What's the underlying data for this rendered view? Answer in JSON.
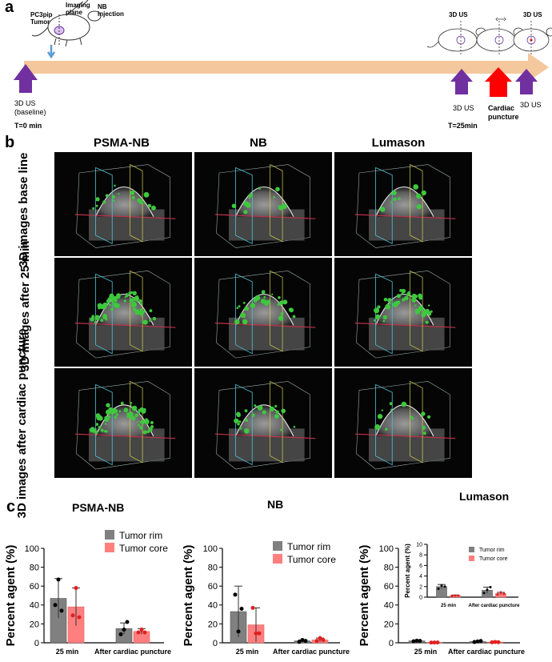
{
  "panel_a": {
    "letter": "a",
    "mouse_labels": {
      "tumor": "PC3pip Tumor",
      "imaging_plane": "Imaging plane",
      "nb_injection": "NB injection"
    },
    "timeline_labels": {
      "baseline": "3D US (baseline)",
      "t0": "T=0 min",
      "us25": "3D US",
      "t25": "T=25min",
      "cardiac": "Cardiac puncture",
      "us_end": "3D US",
      "mouse_label_a": "3D US",
      "mouse_label_b": "3D US"
    },
    "colors": {
      "arrow": "#f4c79c",
      "purple": "#7030a0",
      "red": "#ff0000",
      "blue_arrow": "#5b9bd5"
    }
  },
  "panel_b": {
    "letter": "b",
    "columns": [
      "PSMA-NB",
      "NB",
      "Lumason"
    ],
    "rows": [
      "3D images base line",
      "3D images after 25 min",
      "3D images after cardiac puncture"
    ]
  },
  "panel_c": {
    "letter": "c",
    "colors": {
      "rim": "#808080",
      "core": "#ff7f7f",
      "dot_rim": "#000000",
      "dot_core": "#e02020"
    }
  },
  "chart_data": [
    {
      "type": "bar",
      "title": "PSMA-NB",
      "categories": [
        "25 min",
        "After cardiac puncture"
      ],
      "series": [
        {
          "name": "Tumor rim",
          "values": [
            47,
            15
          ],
          "error": [
            21,
            6
          ],
          "points": [
            [
              40,
              67,
              34
            ],
            [
              9,
              14,
              22
            ]
          ]
        },
        {
          "name": "Tumor core",
          "values": [
            38,
            12
          ],
          "error": [
            20,
            3
          ],
          "points": [
            [
              29,
              58,
              27
            ],
            [
              11,
              14,
              11
            ]
          ]
        }
      ],
      "ylabel": "Percent agent (%)",
      "ylim": [
        0,
        100
      ],
      "yticks": [
        0,
        20,
        40,
        60,
        80,
        100
      ]
    },
    {
      "type": "bar",
      "title": "NB",
      "categories": [
        "25 min",
        "After cardiac puncture"
      ],
      "series": [
        {
          "name": "Tumor rim",
          "values": [
            33,
            2
          ],
          "error": [
            27,
            1
          ],
          "points": [
            [
              51,
              12,
              36
            ],
            [
              1,
              3,
              2
            ]
          ]
        },
        {
          "name": "Tumor core",
          "values": [
            19,
            3
          ],
          "error": [
            18,
            2
          ],
          "points": [
            [
              37,
              10,
              10
            ],
            [
              2,
              5,
              3
            ]
          ]
        }
      ],
      "ylabel": "Percent agent (%)",
      "ylim": [
        0,
        100
      ],
      "yticks": [
        0,
        20,
        40,
        60,
        80,
        100
      ]
    },
    {
      "type": "bar",
      "title": "Lumason",
      "categories": [
        "25 min",
        "After cardiac puncture"
      ],
      "series": [
        {
          "name": "Tumor rim",
          "values": [
            2,
            1.3
          ],
          "error": [
            0.4,
            0.6
          ],
          "points": [
            [
              1.6,
              2.2,
              2.0
            ],
            [
              0.8,
              1.4,
              1.9
            ]
          ]
        },
        {
          "name": "Tumor core",
          "values": [
            0.3,
            0.7
          ],
          "error": [
            0.1,
            0.2
          ],
          "points": [
            [
              0.2,
              0.3,
              0.3
            ],
            [
              0.5,
              0.9,
              0.6
            ]
          ]
        }
      ],
      "ylabel": "Percent agent (%)",
      "ylim": [
        0,
        100
      ],
      "yticks": [
        0,
        20,
        40,
        60,
        80,
        100
      ],
      "inset": {
        "ylabel": "Percent agent (%)",
        "ylim": [
          0,
          10
        ],
        "yticks": [
          0,
          2,
          4,
          6,
          8,
          10
        ]
      }
    }
  ]
}
